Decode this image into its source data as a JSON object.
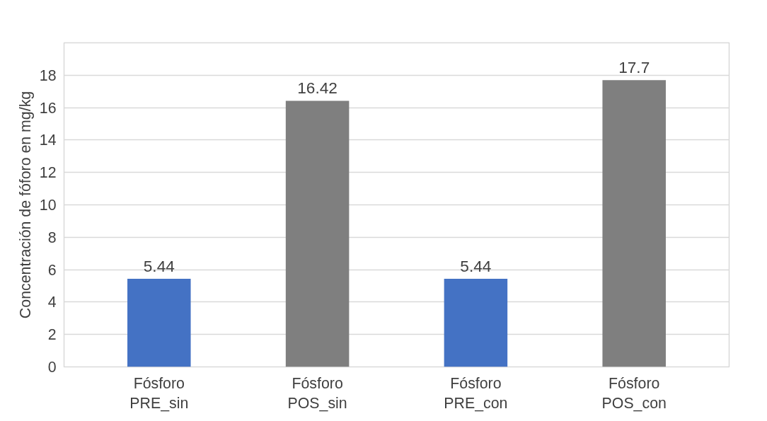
{
  "chart_data": {
    "type": "bar",
    "ylabel": "Concentración de fóforo en mg/kg",
    "categories": [
      "Fósforo PRE_sin",
      "Fósforo POS_sin",
      "Fósforo PRE_con",
      "Fósforo POS_con"
    ],
    "values": [
      5.44,
      16.42,
      5.44,
      17.7
    ],
    "colors": [
      "#4472c4",
      "#7f7f7f",
      "#4472c4",
      "#7f7f7f"
    ],
    "ylim": [
      0,
      20
    ],
    "yticks": [
      0,
      2,
      4,
      6,
      8,
      10,
      12,
      14,
      16,
      18,
      {
        "value": 20,
        "label": null
      }
    ],
    "grid": "y",
    "data_labels": true
  }
}
